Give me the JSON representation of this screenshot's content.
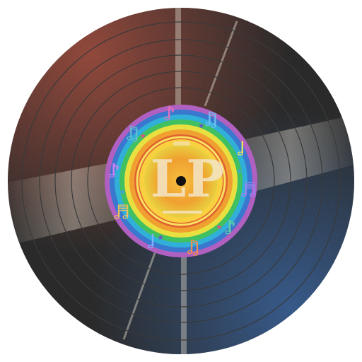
{
  "record": {
    "label_text": "LP",
    "colors": {
      "vinyl": "#1a1a1a",
      "groove": "#3a3a3a",
      "sheen_red": "#8a3a28",
      "sheen_blue": "#2a4a7a",
      "sheen_light": "#d8d0c0",
      "label_rings": [
        "#b060c0",
        "#3a78d0",
        "#30b0d8",
        "#40c060",
        "#e8e040",
        "#f0a030",
        "#e06030",
        "#f8d040"
      ],
      "label_center": "#f0a030",
      "lp_letters": "#f4e6c8",
      "spindle": "#111111"
    },
    "notes": [
      "♪",
      "♫",
      "♩",
      "♬",
      "♪",
      "♫",
      "♩",
      "♬",
      "♪",
      "♫"
    ],
    "stars": [
      "★",
      "★",
      "★",
      "★",
      "★",
      "★"
    ]
  }
}
